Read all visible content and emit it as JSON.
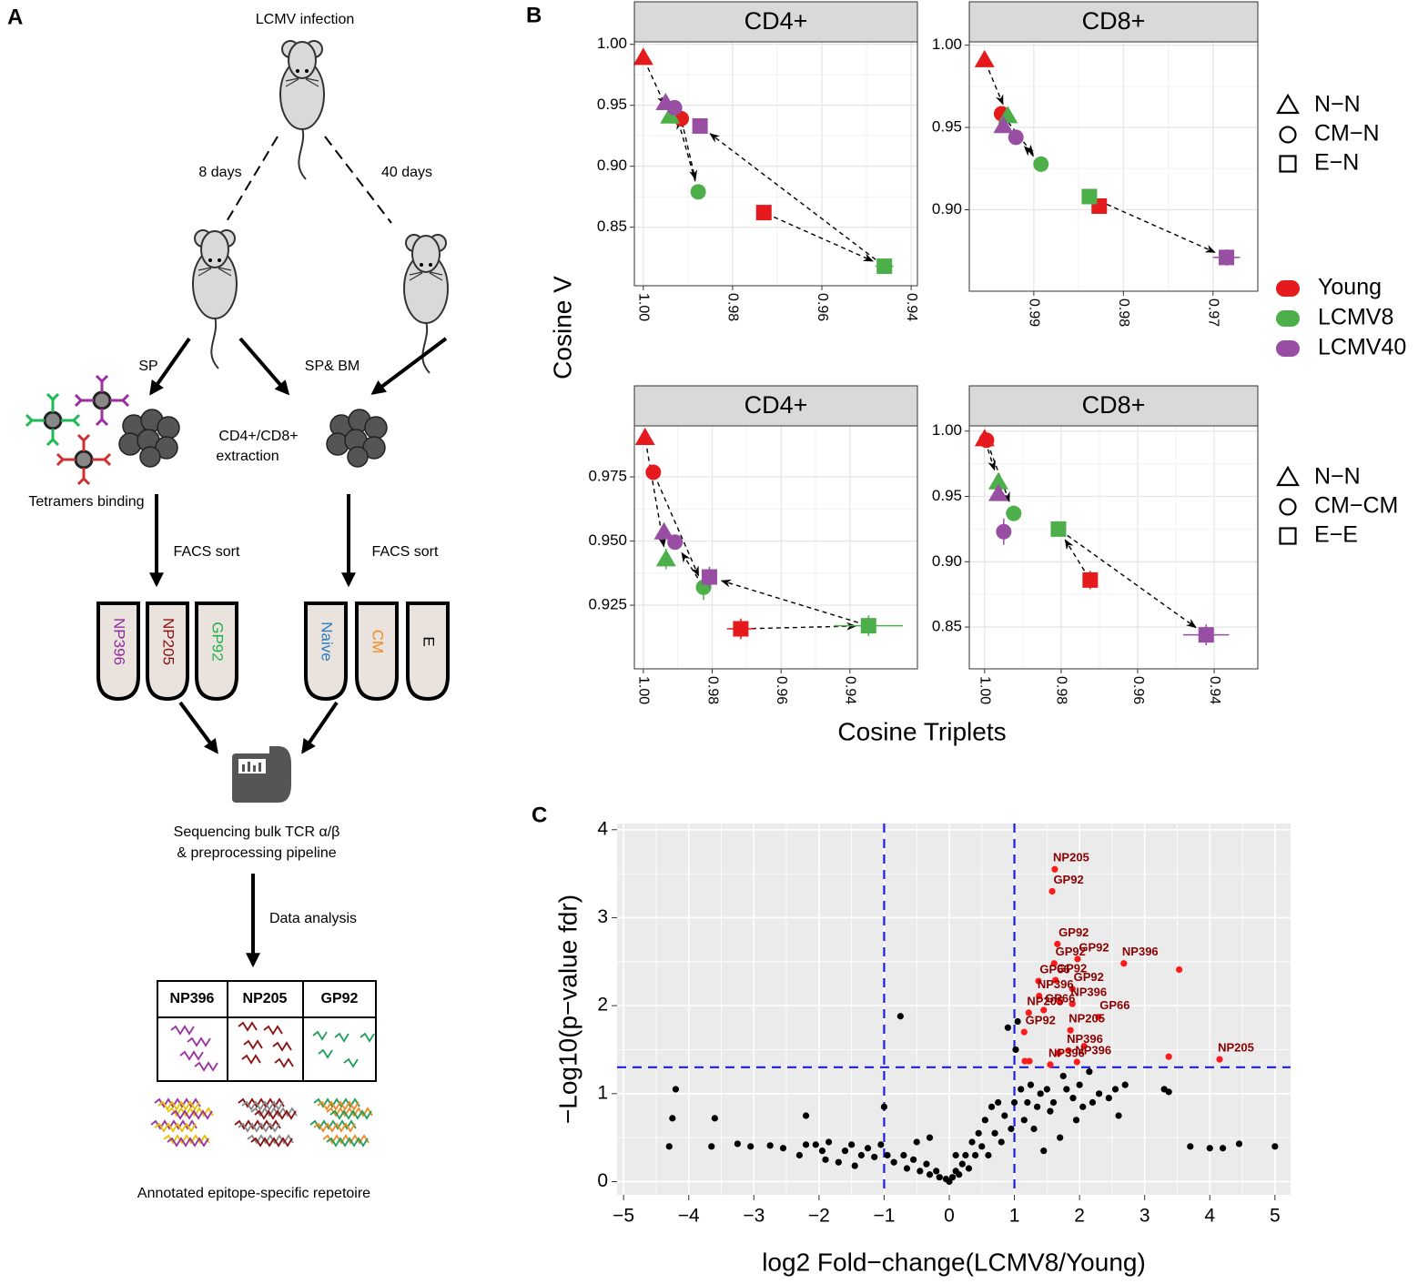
{
  "panel_labels": [
    "A",
    "B",
    "C"
  ],
  "diagram": {
    "infection": "LCMV infection",
    "day8": "8 days",
    "day40": "40 days",
    "sp": "SP",
    "sp_bm": "SP& BM",
    "extraction": [
      "CD4+/CD8+",
      "extraction"
    ],
    "tetramers": "Tetramers binding",
    "facs": [
      "FACS sort",
      "FACS sort"
    ],
    "tubes": [
      "NP396",
      "NP205",
      "GP92",
      "Naive",
      "CM",
      "E"
    ],
    "sequencing": [
      "Sequencing bulk TCR α/β",
      "& preprocessing pipeline"
    ],
    "analysis": "Data analysis",
    "table_header": [
      "NP396",
      "NP205",
      "GP92"
    ],
    "caption": "Annotated epitope-specific repetoire"
  },
  "panel_b": {
    "y_label": "Cosine V",
    "x_label": "Cosine Triplets",
    "groups": [
      {
        "name": "Young",
        "color": "#e41a1c"
      },
      {
        "name": "LCMV8",
        "color": "#4daf4a"
      },
      {
        "name": "LCMV40",
        "color": "#984ea3"
      }
    ],
    "shapes_top": [
      "N−N",
      "CM−N",
      "E−N"
    ],
    "shapes_bottom": [
      "N−N",
      "CM−CM",
      "E−E"
    ]
  },
  "chart_data": [
    {
      "type": "scatter",
      "title": "CD4+",
      "xlim": [
        1.002,
        0.9386
      ],
      "ylim": [
        0.802,
        1.002
      ],
      "xticks": [
        {
          "value": 1.0,
          "label": "1.00"
        },
        {
          "value": 0.98,
          "label": "0.98"
        },
        {
          "value": 0.96,
          "label": "0.96"
        },
        {
          "value": 0.94,
          "label": "0.94"
        }
      ],
      "yticks": [
        {
          "value": 0.85,
          "label": "0.85"
        },
        {
          "value": 0.9,
          "label": "0.90"
        },
        {
          "value": 0.95,
          "label": "0.95"
        },
        {
          "value": 1.0,
          "label": "1.00"
        }
      ],
      "series": [
        {
          "x": [
            1.0,
            0.9915,
            0.973
          ],
          "y": [
            0.989,
            0.939,
            0.862
          ],
          "xerr": [
            null,
            null,
            null
          ],
          "yerr": [
            null,
            null,
            0.003
          ]
        },
        {
          "x": [
            0.994,
            0.9877,
            0.946
          ],
          "y": [
            0.941,
            0.879,
            0.818
          ],
          "xerr": [
            null,
            null,
            0.002
          ],
          "yerr": [
            null,
            null,
            null
          ]
        },
        {
          "x": [
            0.995,
            0.993,
            0.9873
          ],
          "y": [
            0.952,
            0.948,
            0.933
          ],
          "xerr": [
            null,
            null,
            null
          ],
          "yerr": [
            null,
            null,
            null
          ]
        }
      ]
    },
    {
      "type": "scatter",
      "title": "CD8+",
      "xlim": [
        0.9972,
        0.965
      ],
      "ylim": [
        0.8505,
        1.002
      ],
      "xticks": [
        {
          "value": 0.99,
          "label": "0.99"
        },
        {
          "value": 0.98,
          "label": "0.98"
        },
        {
          "value": 0.97,
          "label": "0.97"
        }
      ],
      "yticks": [
        {
          "value": 0.9,
          "label": "0.90"
        },
        {
          "value": 0.95,
          "label": "0.95"
        },
        {
          "value": 1.0,
          "label": "1.00"
        }
      ],
      "series": [
        {
          "x": [
            0.9955,
            0.9936,
            0.9827
          ],
          "y": [
            0.991,
            0.9583,
            0.9022
          ],
          "xerr": [
            null,
            null,
            null
          ],
          "yerr": [
            null,
            null,
            0.003
          ]
        },
        {
          "x": [
            0.9929,
            0.9892,
            0.9838
          ],
          "y": [
            0.957,
            0.9277,
            0.908
          ],
          "xerr": [
            null,
            null,
            null
          ],
          "yerr": [
            null,
            null,
            null
          ]
        },
        {
          "x": [
            0.9934,
            0.992,
            0.9685
          ],
          "y": [
            0.951,
            0.944,
            0.871
          ],
          "xerr": [
            null,
            null,
            0.0015
          ],
          "yerr": [
            null,
            null,
            0.005
          ]
        }
      ]
    },
    {
      "type": "scatter",
      "title": "CD4+",
      "xlim": [
        1.0026,
        0.9204
      ],
      "ylim": [
        0.9002,
        0.9949
      ],
      "xticks": [
        {
          "value": 1.0,
          "label": "1.00"
        },
        {
          "value": 0.98,
          "label": "0.98"
        },
        {
          "value": 0.96,
          "label": "0.96"
        },
        {
          "value": 0.94,
          "label": "0.94"
        }
      ],
      "yticks": [
        {
          "value": 0.925,
          "label": "0.925"
        },
        {
          "value": 0.95,
          "label": "0.950"
        },
        {
          "value": 0.975,
          "label": "0.975"
        }
      ],
      "series": [
        {
          "x": [
            0.9995,
            0.9971,
            0.9717
          ],
          "y": [
            0.9903,
            0.9768,
            0.9158
          ],
          "xerr": [
            null,
            null,
            0.004
          ],
          "yerr": [
            null,
            null,
            0.004
          ]
        },
        {
          "x": [
            0.9934,
            0.9825,
            0.9346
          ],
          "y": [
            0.943,
            0.932,
            0.917
          ],
          "xerr": [
            null,
            null,
            0.01
          ],
          "yerr": [
            0.004,
            0.005,
            0.004
          ]
        },
        {
          "x": [
            0.994,
            0.9908,
            0.9808
          ],
          "y": [
            0.9535,
            0.9496,
            0.936
          ],
          "xerr": [
            null,
            null,
            null
          ],
          "yerr": [
            null,
            null,
            0.004
          ]
        }
      ]
    },
    {
      "type": "scatter",
      "title": "CD8+",
      "xlim": [
        1.004,
        0.9286
      ],
      "ylim": [
        0.818,
        1.004
      ],
      "xticks": [
        {
          "value": 1.0,
          "label": "1.00"
        },
        {
          "value": 0.98,
          "label": "0.98"
        },
        {
          "value": 0.96,
          "label": "0.96"
        },
        {
          "value": 0.94,
          "label": "0.94"
        }
      ],
      "yticks": [
        {
          "value": 0.85,
          "label": "0.85"
        },
        {
          "value": 0.9,
          "label": "0.90"
        },
        {
          "value": 0.95,
          "label": "0.95"
        },
        {
          "value": 1.0,
          "label": "1.00"
        }
      ],
      "series": [
        {
          "x": [
            1.0,
            0.9995,
            0.9724
          ],
          "y": [
            0.994,
            0.993,
            0.886
          ],
          "xerr": [
            null,
            null,
            null
          ],
          "yerr": [
            null,
            null,
            0.007
          ]
        },
        {
          "x": [
            0.9964,
            0.9924,
            0.9807
          ],
          "y": [
            0.961,
            0.937,
            0.925
          ],
          "xerr": [
            null,
            null,
            null
          ],
          "yerr": [
            null,
            null,
            null
          ]
        },
        {
          "x": [
            0.9964,
            0.995,
            0.9421
          ],
          "y": [
            0.952,
            0.923,
            0.844
          ],
          "xerr": [
            null,
            null,
            0.006
          ],
          "yerr": [
            null,
            0.01,
            0.008
          ]
        }
      ]
    },
    {
      "type": "volcano",
      "x_label": "log2 Fold−change(LCMV8/Young)",
      "y_label": "−Log10(p−value fdr)",
      "xlim": [
        -5.1,
        5.24
      ],
      "ylim": [
        -0.15,
        4.07
      ],
      "xticks": [
        {
          "value": -5,
          "label": "−5"
        },
        {
          "value": -4,
          "label": "−4"
        },
        {
          "value": -3,
          "label": "−3"
        },
        {
          "value": -2,
          "label": "−2"
        },
        {
          "value": -1,
          "label": "−1"
        },
        0,
        1,
        2,
        3,
        4,
        5
      ],
      "yticks": [
        0,
        1,
        2,
        3,
        4
      ],
      "vlines": [
        -1,
        1
      ],
      "hline": 1.3,
      "line_color": "#1f1fdd",
      "series": [
        {
          "color": "#000000",
          "x": [
            -4.3,
            -4.25,
            -4.2,
            -3.6,
            -3.65,
            -3.25,
            -3.05,
            -2.75,
            -2.55,
            -2.2,
            -2.2,
            -2.05,
            -1.95,
            -1.9,
            -1.85,
            -1.7,
            -1.6,
            -1.5,
            -1.45,
            -1.35,
            -1.25,
            -1.15,
            -1.05,
            -1.0,
            -0.95,
            -0.85,
            -0.75,
            -0.7,
            -0.65,
            -0.55,
            -0.5,
            -0.45,
            -0.35,
            -0.3,
            -0.2,
            -0.15,
            -0.05,
            0,
            0.05,
            0.1,
            0.15,
            0.2,
            0.25,
            0.3,
            0.35,
            0.4,
            0.45,
            0.5,
            0.55,
            0.6,
            0.65,
            0.7,
            0.75,
            0.8,
            0.85,
            0.9,
            0.95,
            1.0,
            1.02,
            1.05,
            1.1,
            1.15,
            1.2,
            1.25,
            1.3,
            1.35,
            1.4,
            1.45,
            1.5,
            1.55,
            1.6,
            1.7,
            1.75,
            1.8,
            1.9,
            1.95,
            2.0,
            2.05,
            2.15,
            2.2,
            2.3,
            2.45,
            2.55,
            2.6,
            2.7,
            3.3,
            3.37,
            3.7,
            4.0,
            4.2,
            4.45,
            5.0,
            -2.3,
            -0.3,
            0.1
          ],
          "y": [
            0.4,
            0.72,
            1.05,
            0.72,
            0.4,
            0.43,
            0.4,
            0.41,
            0.38,
            0.42,
            0.75,
            0.42,
            0.35,
            0.25,
            0.45,
            0.22,
            0.35,
            0.42,
            0.18,
            0.3,
            0.38,
            0.28,
            0.42,
            0.85,
            0.3,
            0.22,
            1.88,
            0.3,
            0.15,
            0.25,
            0.45,
            0.12,
            0.2,
            0.08,
            0.12,
            0.05,
            0.03,
            0,
            0.05,
            0.12,
            0.08,
            0.2,
            0.3,
            0.15,
            0.45,
            0.3,
            0.55,
            0.4,
            0.7,
            0.3,
            0.85,
            0.55,
            0.9,
            0.45,
            0.75,
            1.75,
            0.6,
            0.9,
            1.5,
            1.82,
            1.05,
            0.7,
            0.9,
            1.1,
            0.6,
            0.85,
            1.0,
            0.35,
            1.05,
            0.8,
            0.9,
            0.5,
            1.2,
            1.05,
            0.95,
            0.7,
            1.1,
            0.85,
            1.25,
            0.9,
            1.0,
            0.95,
            1.05,
            0.75,
            1.1,
            1.05,
            1.02,
            0.4,
            0.38,
            0.38,
            0.43,
            0.4,
            0.3,
            0.5,
            0.3
          ]
        },
        {
          "color": "#ff1a1a",
          "x": [
            1.62,
            1.58,
            1.66,
            1.97,
            1.61,
            2.68,
            3.53,
            1.37,
            1.63,
            1.89,
            1.38,
            1.7,
            1.89,
            2.29,
            1.22,
            1.15,
            1.86,
            1.83,
            1.68,
            2.07,
            1.23,
            1.16,
            3.37,
            4.15,
            1.96,
            1.55,
            1.45
          ],
          "y": [
            3.55,
            3.3,
            2.7,
            2.53,
            2.48,
            2.48,
            2.41,
            2.28,
            2.29,
            2.19,
            2.11,
            2.04,
            2.02,
            1.87,
            1.92,
            1.7,
            1.72,
            1.49,
            1.46,
            1.54,
            1.37,
            1.37,
            1.42,
            1.39,
            1.36,
            1.33,
            1.95
          ],
          "labels": [
            "NP205",
            "GP92",
            "GP92",
            "GP92",
            "GP92",
            "NP396",
            null,
            "GP66",
            "GP92",
            "GP92",
            "NP396",
            null,
            "NP396",
            "GP66",
            "NP205",
            "GP92",
            "NP205",
            "NP396",
            null,
            null,
            null,
            null,
            null,
            "NP205",
            "NP396",
            "NP396",
            "GP66"
          ]
        }
      ]
    }
  ]
}
